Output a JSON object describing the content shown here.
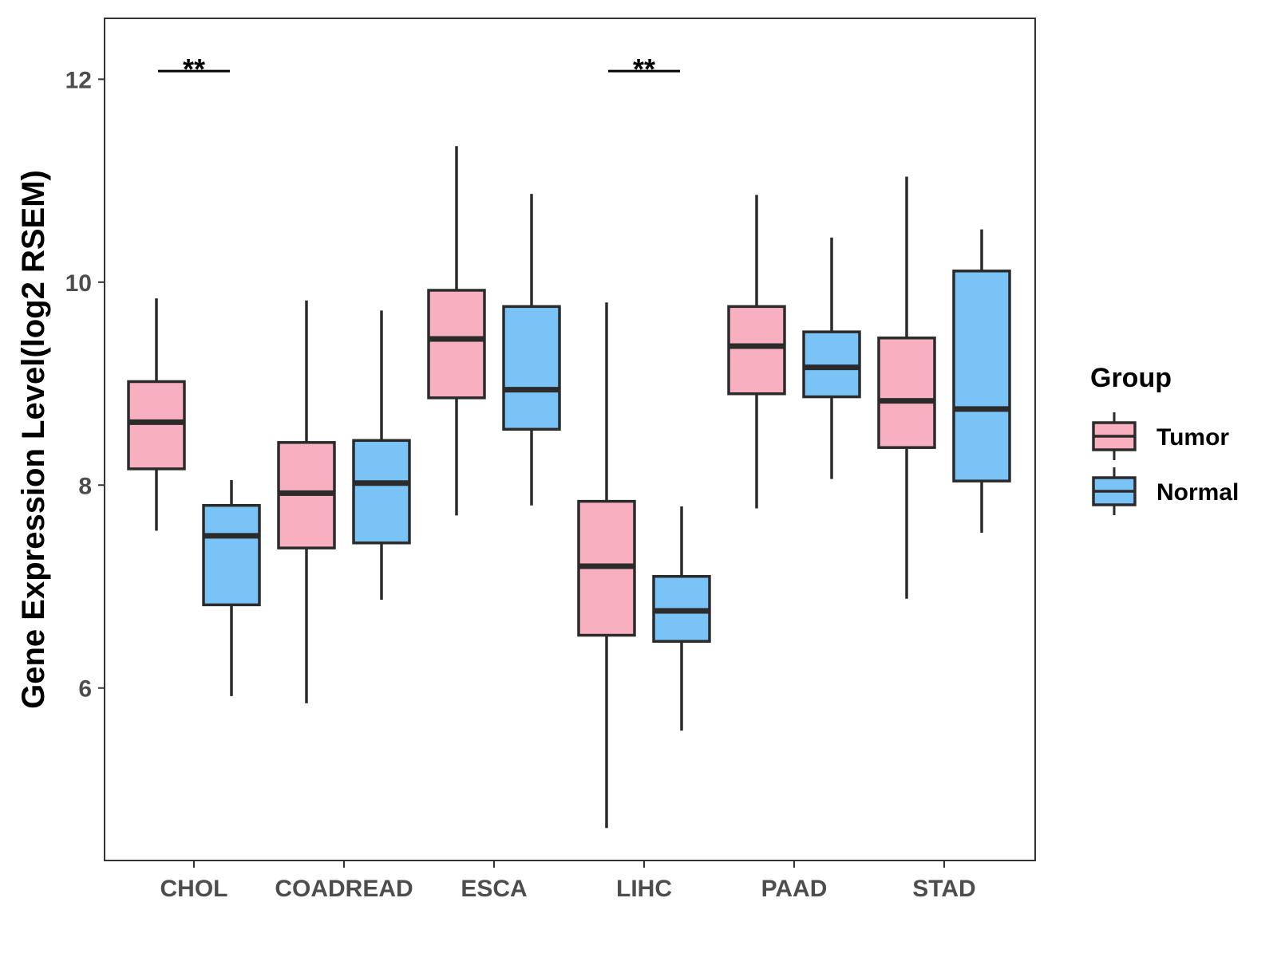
{
  "chart_data": {
    "type": "boxplot",
    "title": "",
    "xlabel": "",
    "ylabel": "Gene Expression Level(log2 RSEM)",
    "ylim": [
      4.3,
      12.6
    ],
    "yticks": [
      6,
      8,
      10,
      12
    ],
    "ytick_labels": [
      "6",
      "8",
      "10",
      "12"
    ],
    "categories": [
      "CHOL",
      "COADREAD",
      "ESCA",
      "LIHC",
      "PAAD",
      "STAD"
    ],
    "legend": {
      "title": "Group",
      "placement": "right"
    },
    "series": [
      {
        "name": "Tumor",
        "color": "#F8AFC0",
        "boxes": [
          {
            "category": "CHOL",
            "whisker_low": 7.55,
            "q1": 8.16,
            "median": 8.62,
            "q3": 9.02,
            "whisker_high": 9.84
          },
          {
            "category": "COADREAD",
            "whisker_low": 5.85,
            "q1": 7.38,
            "median": 7.92,
            "q3": 8.42,
            "whisker_high": 9.82
          },
          {
            "category": "ESCA",
            "whisker_low": 7.7,
            "q1": 8.86,
            "median": 9.44,
            "q3": 9.92,
            "whisker_high": 11.34
          },
          {
            "category": "LIHC",
            "whisker_low": 4.62,
            "q1": 6.52,
            "median": 7.2,
            "q3": 7.84,
            "whisker_high": 9.8
          },
          {
            "category": "PAAD",
            "whisker_low": 7.77,
            "q1": 8.9,
            "median": 9.37,
            "q3": 9.76,
            "whisker_high": 10.86
          },
          {
            "category": "STAD",
            "whisker_low": 6.88,
            "q1": 8.37,
            "median": 8.83,
            "q3": 9.45,
            "whisker_high": 11.04
          }
        ]
      },
      {
        "name": "Normal",
        "color": "#7AC3F7",
        "boxes": [
          {
            "category": "CHOL",
            "whisker_low": 5.92,
            "q1": 6.82,
            "median": 7.5,
            "q3": 7.8,
            "whisker_high": 8.05
          },
          {
            "category": "COADREAD",
            "whisker_low": 6.87,
            "q1": 7.43,
            "median": 8.02,
            "q3": 8.44,
            "whisker_high": 9.72
          },
          {
            "category": "ESCA",
            "whisker_low": 7.8,
            "q1": 8.55,
            "median": 8.94,
            "q3": 9.76,
            "whisker_high": 10.87
          },
          {
            "category": "LIHC",
            "whisker_low": 5.58,
            "q1": 6.46,
            "median": 6.76,
            "q3": 7.1,
            "whisker_high": 7.79
          },
          {
            "category": "PAAD",
            "whisker_low": 8.06,
            "q1": 8.87,
            "median": 9.16,
            "q3": 9.51,
            "whisker_high": 10.44
          },
          {
            "category": "STAD",
            "whisker_low": 7.53,
            "q1": 8.04,
            "median": 8.75,
            "q3": 10.11,
            "whisker_high": 10.52
          }
        ]
      }
    ],
    "annotations": [
      {
        "category": "CHOL",
        "text": "**",
        "y": 12.08
      },
      {
        "category": "LIHC",
        "text": "**",
        "y": 12.08
      }
    ]
  }
}
